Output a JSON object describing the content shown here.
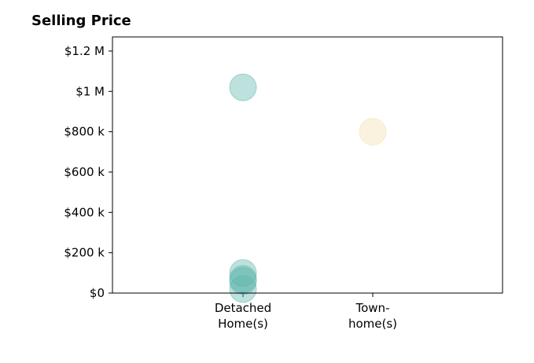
{
  "chart_data": {
    "type": "scatter",
    "title": "Selling Price",
    "xlabel": "",
    "ylabel": "",
    "categories": [
      [
        "Detached",
        "Home(s)"
      ],
      [
        "Town-",
        "home(s)"
      ]
    ],
    "ylim": [
      0,
      1270000
    ],
    "yticks": [
      0,
      200000,
      400000,
      600000,
      800000,
      1000000,
      1200000
    ],
    "ytick_labels": [
      "$0",
      "$200 k",
      "$400 k",
      "$600 k",
      "$800 k",
      "$1 M",
      "$1.2 M"
    ],
    "grid": false,
    "series": [
      {
        "category_index": 0,
        "color": "#5BB5A9",
        "values": [
          1020000,
          100000,
          70000,
          60000,
          20000
        ]
      },
      {
        "category_index": 1,
        "color": "#F3DFAE",
        "values": [
          800000
        ]
      }
    ]
  }
}
